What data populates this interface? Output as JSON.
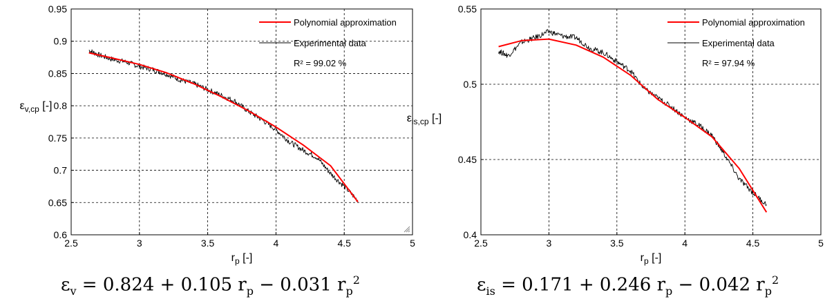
{
  "chart_data": [
    {
      "type": "line",
      "xlabel": "r",
      "xlabel_sub": "p",
      "xlabel_suffix": "[-]",
      "ylabel": "ε",
      "ylabel_sub": "v,cp",
      "ylabel_suffix": "[-]",
      "xlim": [
        2.5,
        5
      ],
      "ylim": [
        0.6,
        0.95
      ],
      "xticks": [
        "2.5",
        "3",
        "3.5",
        "4",
        "4.5",
        "5"
      ],
      "yticks": [
        "0.6",
        "0.65",
        "0.7",
        "0.75",
        "0.8",
        "0.85",
        "0.9",
        "0.95"
      ],
      "grid": true,
      "legend_position": "top-right",
      "r2_text": "R² = 99.02 %",
      "series": [
        {
          "name": "Polynomial approximation",
          "color": "#ff0000",
          "x": [
            2.63,
            2.8,
            3.0,
            3.2,
            3.4,
            3.6,
            3.8,
            4.0,
            4.2,
            4.4,
            4.6
          ],
          "y": [
            0.882,
            0.874,
            0.864,
            0.851,
            0.834,
            0.814,
            0.792,
            0.767,
            0.739,
            0.707,
            0.651
          ]
        },
        {
          "name": "Experimental data",
          "color": "#000000",
          "x": [
            2.63,
            2.7,
            2.8,
            2.9,
            3.0,
            3.1,
            3.2,
            3.3,
            3.4,
            3.5,
            3.6,
            3.7,
            3.8,
            3.9,
            4.0,
            4.1,
            4.2,
            4.3,
            4.4,
            4.5,
            4.6
          ],
          "y": [
            0.886,
            0.879,
            0.872,
            0.868,
            0.861,
            0.856,
            0.849,
            0.84,
            0.834,
            0.825,
            0.816,
            0.807,
            0.791,
            0.778,
            0.763,
            0.744,
            0.731,
            0.72,
            0.695,
            0.675,
            0.653
          ]
        }
      ],
      "equation": {
        "lhs": "ε",
        "lhs_sub": "v",
        "text": "= 0.824 + 0.105 r",
        "sub1": "p",
        "text2": "− 0.031 r",
        "sub2": "p",
        "sup2": "2"
      }
    },
    {
      "type": "line",
      "xlabel": "r",
      "xlabel_sub": "p",
      "xlabel_suffix": "[-]",
      "ylabel": "ε",
      "ylabel_sub": "is,cp",
      "ylabel_suffix": "[-]",
      "xlim": [
        2.5,
        5
      ],
      "ylim": [
        0.4,
        0.55
      ],
      "xticks": [
        "2.5",
        "3",
        "3.5",
        "4",
        "4.5",
        "5"
      ],
      "yticks": [
        "0.4",
        "0.45",
        "0.5",
        "0.55"
      ],
      "grid": true,
      "legend_position": "top-right",
      "r2_text": "R² = 97.94 %",
      "series": [
        {
          "name": "Polynomial approximation",
          "color": "#ff0000",
          "x": [
            2.63,
            2.8,
            3.0,
            3.2,
            3.4,
            3.6,
            3.8,
            4.0,
            4.2,
            4.4,
            4.6
          ],
          "y": [
            0.525,
            0.529,
            0.53,
            0.526,
            0.518,
            0.506,
            0.49,
            0.478,
            0.465,
            0.444,
            0.415
          ]
        },
        {
          "name": "Experimental data",
          "color": "#000000",
          "x": [
            2.63,
            2.7,
            2.8,
            2.9,
            3.0,
            3.1,
            3.2,
            3.3,
            3.4,
            3.5,
            3.6,
            3.7,
            3.8,
            3.9,
            4.0,
            4.1,
            4.2,
            4.3,
            4.4,
            4.5,
            4.6
          ],
          "y": [
            0.522,
            0.519,
            0.528,
            0.531,
            0.535,
            0.532,
            0.531,
            0.524,
            0.521,
            0.515,
            0.509,
            0.497,
            0.491,
            0.485,
            0.478,
            0.473,
            0.466,
            0.452,
            0.437,
            0.428,
            0.42
          ]
        }
      ],
      "equation": {
        "lhs": "ε",
        "lhs_sub": "is",
        "text": "= 0.171 + 0.246 r",
        "sub1": "p",
        "text2": "− 0.042 r",
        "sub2": "p",
        "sup2": "2"
      }
    }
  ]
}
